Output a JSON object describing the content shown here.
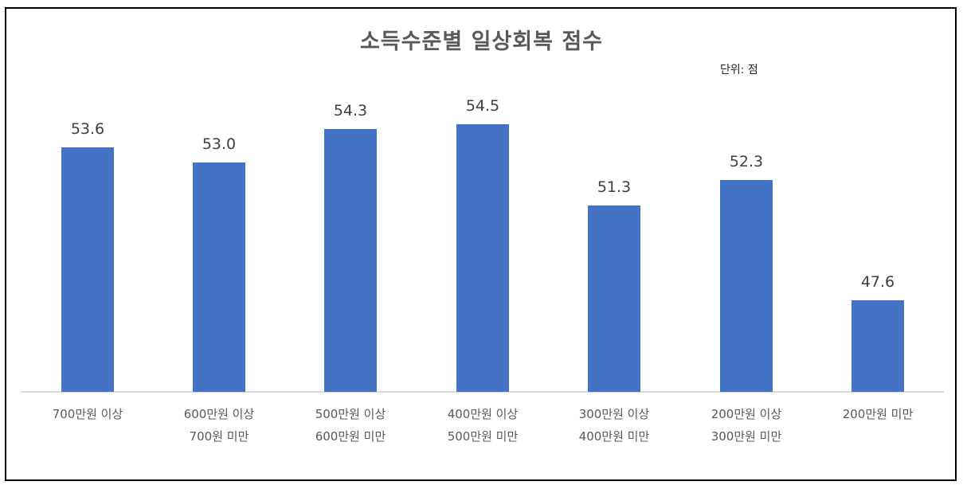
{
  "chart_data": {
    "type": "bar",
    "title": "소득수준별 일상회복 점수",
    "unit_label": "단위: 점",
    "xlabel": "",
    "ylabel": "",
    "categories": [
      "700만원 이상",
      "600만원 이상\n700원 미만",
      "500만원 이상\n600만원 미만",
      "400만원 이상\n500만원 미만",
      "300만원 이상\n400만원 미만",
      "200만원 이상\n300만원 미만",
      "200만원 미만"
    ],
    "values": [
      53.6,
      53.0,
      54.3,
      54.5,
      51.3,
      52.3,
      47.6
    ],
    "value_labels": [
      "53.6",
      "53.0",
      "54.3",
      "54.5",
      "51.3",
      "52.3",
      "47.6"
    ],
    "ylim": [
      44,
      56
    ],
    "grid": false,
    "legend": "none",
    "bar_color": "#4472c4"
  }
}
